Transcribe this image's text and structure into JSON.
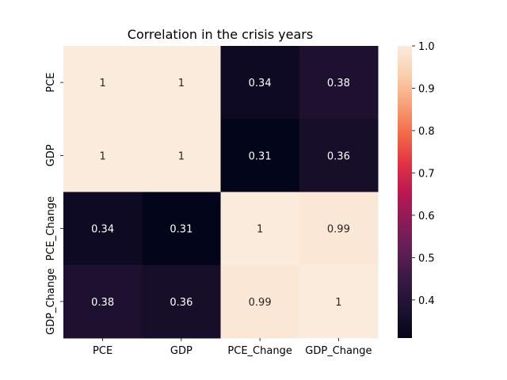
{
  "chart_data": {
    "type": "heatmap",
    "title": "Correlation in the crisis years",
    "xlabel": "",
    "ylabel": "",
    "x_categories": [
      "PCE",
      "GDP",
      "PCE_Change",
      "GDP_Change"
    ],
    "y_categories": [
      "PCE",
      "GDP",
      "PCE_Change",
      "GDP_Change"
    ],
    "values": [
      [
        1,
        1,
        0.34,
        0.38
      ],
      [
        1,
        1,
        0.31,
        0.36
      ],
      [
        0.34,
        0.31,
        1,
        0.99
      ],
      [
        0.38,
        0.36,
        0.99,
        1
      ]
    ],
    "cell_labels": [
      [
        "1",
        "1",
        "0.34",
        "0.38"
      ],
      [
        "1",
        "1",
        "0.31",
        "0.36"
      ],
      [
        "0.34",
        "0.31",
        "1",
        "0.99"
      ],
      [
        "0.38",
        "0.36",
        "0.99",
        "1"
      ]
    ],
    "colormap": "rocket",
    "vmin": 0.31,
    "vmax": 1.0,
    "colorbar": {
      "ticks": [
        0.4,
        0.5,
        0.6,
        0.7,
        0.8,
        0.9,
        1.0
      ],
      "tick_labels": [
        "0.4",
        "0.5",
        "0.6",
        "0.7",
        "0.8",
        "0.9",
        "1.0"
      ]
    },
    "grid": false,
    "legend": "colorbar-right"
  }
}
